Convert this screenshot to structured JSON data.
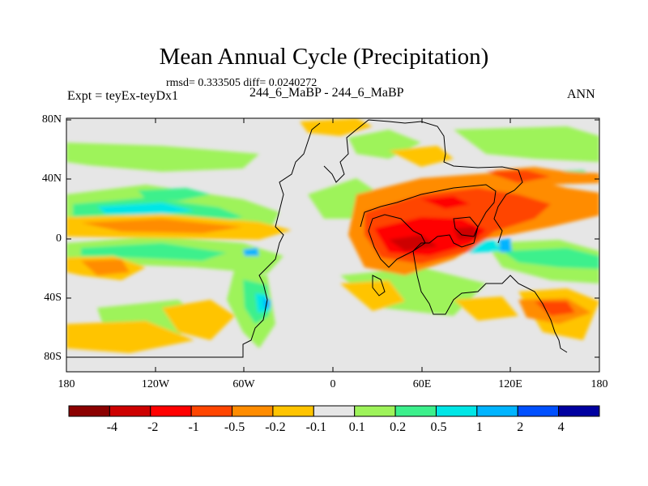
{
  "title": "Mean Annual Cycle (Precipitation)",
  "stats": "rmsd= 0.333505 diff= 0.0240272",
  "experiment_label": "Expt = teyEx-teyDx1",
  "case_label": "244_6_MaBP - 244_6_MaBP",
  "season": "ANN",
  "lat_ticks": [
    "80N",
    "40N",
    "0",
    "40S",
    "80S"
  ],
  "lon_ticks": [
    "180",
    "120W",
    "60W",
    "0",
    "60E",
    "120E",
    "180"
  ],
  "colorbar": {
    "labels": [
      "-4",
      "-2",
      "-1",
      "-0.5",
      "-0.2",
      "-0.1",
      "0.1",
      "0.2",
      "0.5",
      "1",
      "2",
      "4"
    ],
    "colors": [
      "#8b0000",
      "#cd0000",
      "#ff0000",
      "#ff4500",
      "#ff8c00",
      "#ffc400",
      "#e6e6e6",
      "#9ef35a",
      "#3cf08c",
      "#00e6e6",
      "#00b4ff",
      "#0050ff",
      "#0000a0"
    ]
  },
  "colors": {
    "background_field": "#e6e6e6",
    "coastline": "#000000"
  }
}
